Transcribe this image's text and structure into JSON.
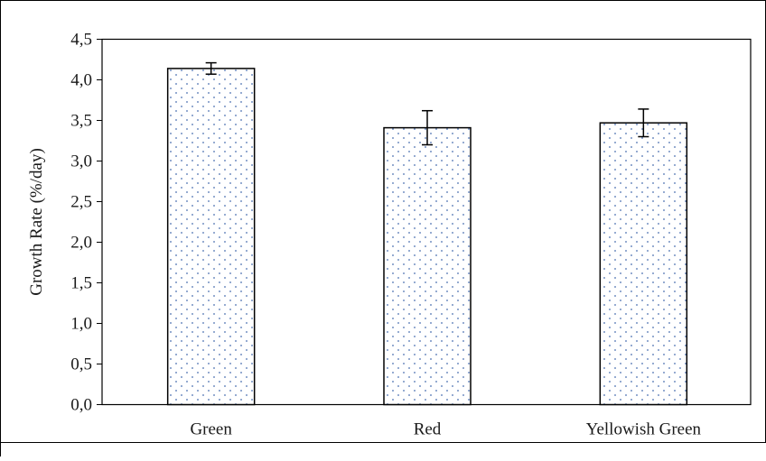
{
  "chart_data": {
    "type": "bar",
    "title": "",
    "xlabel": "",
    "ylabel": "Growth Rate (%/day)",
    "categories": [
      "Green",
      "Red",
      "Yellowish Green"
    ],
    "values": [
      4.14,
      3.41,
      3.47
    ],
    "errors": [
      0.07,
      0.21,
      0.17
    ],
    "ylim": [
      0.0,
      4.5
    ],
    "yticks": [
      "0,0",
      "0,5",
      "1,0",
      "1,5",
      "2,0",
      "2,5",
      "3,0",
      "3,5",
      "4,0",
      "4,5"
    ],
    "grid": false,
    "bar_fill": "dotted",
    "colors": {
      "bar_fill": "#ffffff",
      "bar_dots": "#4a6fb0",
      "bar_edge": "#000000",
      "axis": "#000000"
    }
  }
}
